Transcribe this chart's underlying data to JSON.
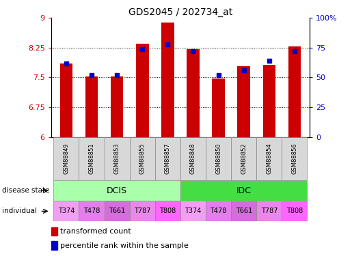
{
  "title": "GDS2045 / 202734_at",
  "samples": [
    "GSM88849",
    "GSM88851",
    "GSM88853",
    "GSM88855",
    "GSM88857",
    "GSM88848",
    "GSM88850",
    "GSM88852",
    "GSM88854",
    "GSM88856"
  ],
  "transformed_count": [
    7.85,
    7.52,
    7.52,
    8.35,
    8.88,
    8.22,
    7.48,
    7.78,
    7.82,
    8.28
  ],
  "percentile_rank": [
    62,
    52,
    52,
    74,
    78,
    72,
    52,
    56,
    64,
    72
  ],
  "ylim_left": [
    6.0,
    9.0
  ],
  "yticks_left": [
    6.0,
    6.75,
    7.5,
    8.25,
    9.0
  ],
  "ytick_labels_left": [
    "6",
    "6.75",
    "7.5",
    "8.25",
    "9"
  ],
  "yticks_right": [
    0,
    25,
    50,
    75,
    100
  ],
  "ytick_labels_right": [
    "0",
    "25",
    "50",
    "75",
    "100%"
  ],
  "disease_state_groups": [
    {
      "label": "DCIS",
      "start": 0,
      "end": 4
    },
    {
      "label": "IDC",
      "start": 5,
      "end": 9
    }
  ],
  "individual": [
    "T374",
    "T478",
    "T661",
    "T787",
    "T808",
    "T374",
    "T478",
    "T661",
    "T787",
    "T808"
  ],
  "individual_colors": [
    "#F0A0F0",
    "#E080E8",
    "#D070D8",
    "#E888E8",
    "#FF66FF",
    "#F0A0F0",
    "#E080E8",
    "#D070D8",
    "#E888E8",
    "#FF66FF"
  ],
  "dcis_color": "#AAFFAA",
  "idc_color": "#44DD44",
  "sample_bg_color": "#D8D8D8",
  "bar_color": "#CC0000",
  "marker_color": "#0000CC",
  "bar_width": 0.5,
  "legend_red_label": "transformed count",
  "legend_blue_label": "percentile rank within the sample"
}
